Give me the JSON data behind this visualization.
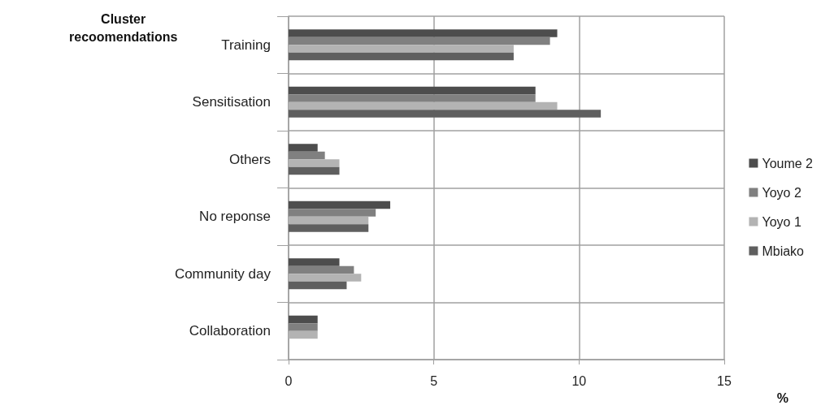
{
  "chart_data": {
    "type": "bar",
    "orientation": "horizontal",
    "ylabel": "Cluster recoomendations",
    "xlabel": "%",
    "categories": [
      "Training",
      "Sensitisation",
      "Others",
      "No reponse",
      "Community day",
      "Collaboration"
    ],
    "series": [
      {
        "name": "Youme 2",
        "color": "#4d4d4d",
        "values": [
          9.25,
          8.5,
          1,
          3.5,
          1.75,
          1
        ]
      },
      {
        "name": "Yoyo 2",
        "color": "#808080",
        "values": [
          9,
          8.5,
          1.25,
          3,
          2.25,
          1
        ]
      },
      {
        "name": "Yoyo 1",
        "color": "#b3b3b3",
        "values": [
          7.75,
          9.25,
          1.75,
          2.75,
          2.5,
          1
        ]
      },
      {
        "name": "Mbiako",
        "color": "#5f5f5f",
        "values": [
          7.75,
          10.75,
          1.75,
          2.75,
          2,
          0
        ]
      }
    ],
    "xlim": [
      0,
      15
    ],
    "xticks": [
      0,
      5,
      10,
      15
    ],
    "grid": true,
    "legend": "right"
  }
}
